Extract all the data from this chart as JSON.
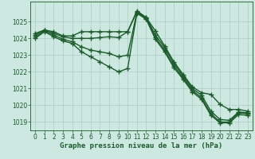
{
  "background_color": "#cce8e0",
  "grid_color": "#aaccC4",
  "line_color": "#1a5c2a",
  "line_width": 1.0,
  "marker": "+",
  "marker_size": 4,
  "marker_edge_width": 1.0,
  "xlabel": "Graphe pression niveau de la mer (hPa)",
  "xlabel_fontsize": 6.5,
  "tick_fontsize": 5.5,
  "xlim": [
    -0.5,
    23.5
  ],
  "ylim": [
    1018.5,
    1026.2
  ],
  "yticks": [
    1019,
    1020,
    1021,
    1022,
    1023,
    1024,
    1025
  ],
  "xticks": [
    0,
    1,
    2,
    3,
    4,
    5,
    6,
    7,
    8,
    9,
    10,
    11,
    12,
    13,
    14,
    15,
    16,
    17,
    18,
    19,
    20,
    21,
    22,
    23
  ],
  "series": [
    [
      1024.3,
      1024.5,
      1024.4,
      1024.15,
      1024.15,
      1024.4,
      1024.4,
      1024.4,
      1024.4,
      1024.4,
      1024.4,
      1025.65,
      1025.25,
      1024.45,
      1023.55,
      1022.6,
      1021.85,
      1021.1,
      1020.75,
      1020.65,
      1020.05,
      1019.75,
      1019.75,
      1019.65
    ],
    [
      1024.2,
      1024.5,
      1024.3,
      1024.1,
      1024.0,
      1024.0,
      1024.0,
      1024.05,
      1024.1,
      1024.05,
      1024.4,
      1025.6,
      1025.25,
      1024.2,
      1023.45,
      1022.5,
      1021.75,
      1021.0,
      1020.6,
      1019.65,
      1019.15,
      1019.1,
      1019.6,
      1019.55
    ],
    [
      1024.1,
      1024.45,
      1024.2,
      1023.95,
      1023.8,
      1023.5,
      1023.3,
      1023.2,
      1023.1,
      1022.9,
      1023.0,
      1025.55,
      1025.2,
      1024.05,
      1023.3,
      1022.35,
      1021.65,
      1020.9,
      1020.45,
      1019.5,
      1019.0,
      1019.0,
      1019.55,
      1019.5
    ],
    [
      1024.0,
      1024.4,
      1024.1,
      1023.85,
      1023.7,
      1023.2,
      1022.9,
      1022.6,
      1022.3,
      1022.0,
      1022.2,
      1025.5,
      1025.15,
      1023.95,
      1023.2,
      1022.25,
      1021.55,
      1020.8,
      1020.35,
      1019.4,
      1018.95,
      1018.95,
      1019.45,
      1019.4
    ]
  ]
}
